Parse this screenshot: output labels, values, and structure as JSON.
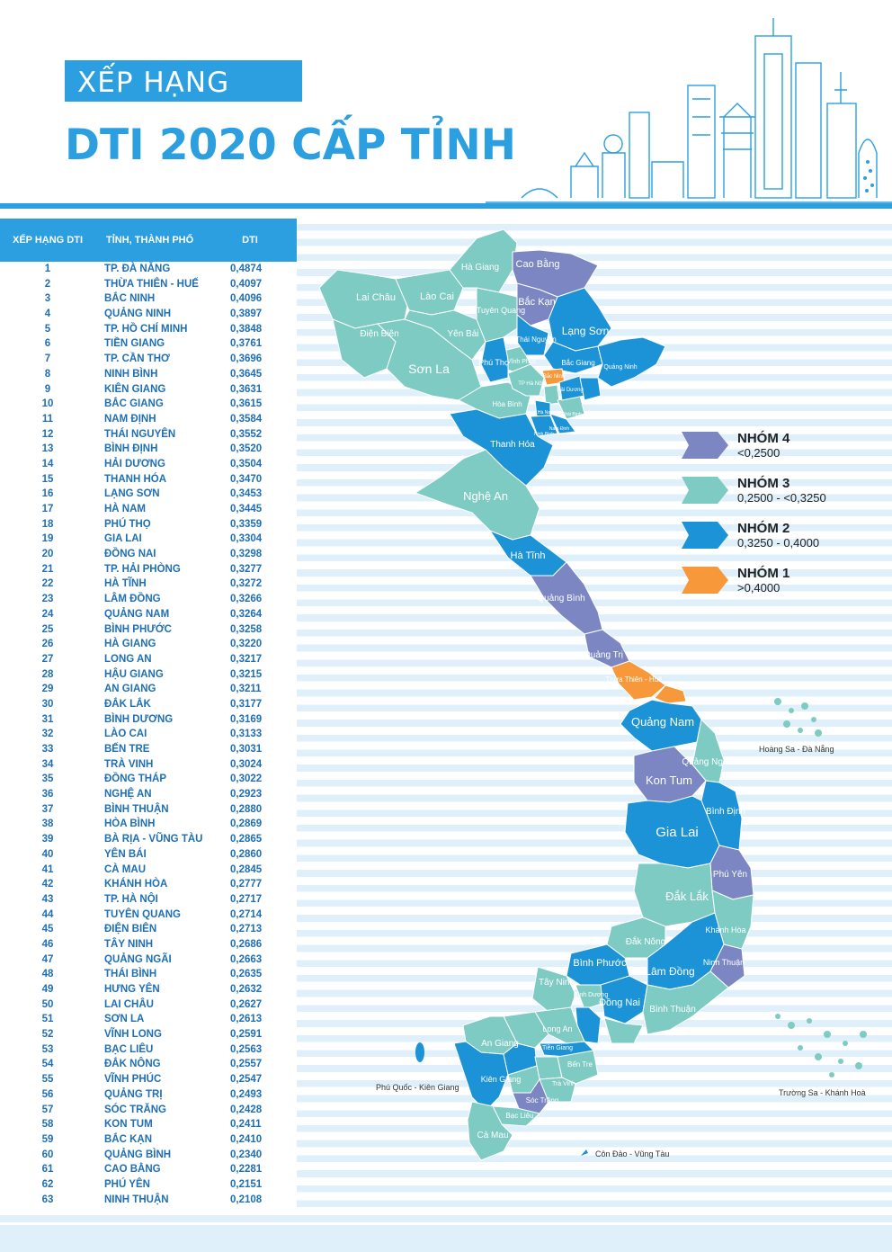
{
  "header": {
    "subtitle": "XẾP HẠNG",
    "title": "DTI 2020 CẤP TỈNH"
  },
  "table": {
    "headers": {
      "rank": "XẾP HẠNG DTI",
      "province": "TỈNH, THÀNH PHỐ",
      "dti": "DTI"
    },
    "rows": [
      {
        "rank": "1",
        "province": "TP. ĐÀ NẴNG",
        "dti": "0,4874"
      },
      {
        "rank": "2",
        "province": "THỪA THIÊN - HUẾ",
        "dti": "0,4097"
      },
      {
        "rank": "3",
        "province": "BẮC NINH",
        "dti": "0,4096"
      },
      {
        "rank": "4",
        "province": "QUẢNG NINH",
        "dti": "0,3897"
      },
      {
        "rank": "5",
        "province": "TP. HỒ CHÍ MINH",
        "dti": "0,3848"
      },
      {
        "rank": "6",
        "province": "TIỀN GIANG",
        "dti": "0,3761"
      },
      {
        "rank": "7",
        "province": "TP. CẦN THƠ",
        "dti": "0,3696"
      },
      {
        "rank": "8",
        "province": "NINH BÌNH",
        "dti": "0,3645"
      },
      {
        "rank": "9",
        "province": "KIÊN GIANG",
        "dti": "0,3631"
      },
      {
        "rank": "10",
        "province": "BẮC GIANG",
        "dti": "0,3615"
      },
      {
        "rank": "11",
        "province": "NAM ĐỊNH",
        "dti": "0,3584"
      },
      {
        "rank": "12",
        "province": "THÁI NGUYÊN",
        "dti": "0,3552"
      },
      {
        "rank": "13",
        "province": "BÌNH ĐỊNH",
        "dti": "0,3520"
      },
      {
        "rank": "14",
        "province": "HẢI DƯƠNG",
        "dti": "0,3504"
      },
      {
        "rank": "15",
        "province": "THANH HÓA",
        "dti": "0,3470"
      },
      {
        "rank": "16",
        "province": "LẠNG SƠN",
        "dti": "0,3453"
      },
      {
        "rank": "17",
        "province": "HÀ NAM",
        "dti": "0,3445"
      },
      {
        "rank": "18",
        "province": "PHÚ THỌ",
        "dti": "0,3359"
      },
      {
        "rank": "19",
        "province": "GIA LAI",
        "dti": "0,3304"
      },
      {
        "rank": "20",
        "province": "ĐỒNG NAI",
        "dti": "0,3298"
      },
      {
        "rank": "21",
        "province": "TP. HẢI PHÒNG",
        "dti": "0,3277"
      },
      {
        "rank": "22",
        "province": "HÀ TĨNH",
        "dti": "0,3272"
      },
      {
        "rank": "23",
        "province": "LÂM ĐỒNG",
        "dti": "0,3266"
      },
      {
        "rank": "24",
        "province": "QUẢNG NAM",
        "dti": "0,3264"
      },
      {
        "rank": "25",
        "province": "BÌNH PHƯỚC",
        "dti": "0,3258"
      },
      {
        "rank": "26",
        "province": "HÀ GIANG",
        "dti": "0,3220"
      },
      {
        "rank": "27",
        "province": "LONG AN",
        "dti": "0,3217"
      },
      {
        "rank": "28",
        "province": "HẬU GIANG",
        "dti": "0,3215"
      },
      {
        "rank": "29",
        "province": "AN GIANG",
        "dti": "0,3211"
      },
      {
        "rank": "30",
        "province": "ĐẮK LẮK",
        "dti": "0,3177"
      },
      {
        "rank": "31",
        "province": "BÌNH DƯƠNG",
        "dti": "0,3169"
      },
      {
        "rank": "32",
        "province": "LÀO CAI",
        "dti": "0,3133"
      },
      {
        "rank": "33",
        "province": "BẾN TRE",
        "dti": "0,3031"
      },
      {
        "rank": "34",
        "province": "TRÀ VINH",
        "dti": "0,3024"
      },
      {
        "rank": "35",
        "province": "ĐỒNG THÁP",
        "dti": "0,3022"
      },
      {
        "rank": "36",
        "province": "NGHỆ AN",
        "dti": "0,2923"
      },
      {
        "rank": "37",
        "province": "BÌNH THUẬN",
        "dti": "0,2880"
      },
      {
        "rank": "38",
        "province": "HÒA BÌNH",
        "dti": "0,2869"
      },
      {
        "rank": "39",
        "province": "BÀ RỊA - VŨNG TÀU",
        "dti": "0,2865"
      },
      {
        "rank": "40",
        "province": "YÊN BÁI",
        "dti": "0,2860"
      },
      {
        "rank": "41",
        "province": "CÀ MAU",
        "dti": "0,2845"
      },
      {
        "rank": "42",
        "province": "KHÁNH HÒA",
        "dti": "0,2777"
      },
      {
        "rank": "43",
        "province": "TP. HÀ NỘI",
        "dti": "0,2717"
      },
      {
        "rank": "44",
        "province": "TUYÊN QUANG",
        "dti": "0,2714"
      },
      {
        "rank": "45",
        "province": "ĐIỆN BIÊN",
        "dti": "0,2713"
      },
      {
        "rank": "46",
        "province": "TÂY NINH",
        "dti": "0,2686"
      },
      {
        "rank": "47",
        "province": "QUẢNG NGÃI",
        "dti": "0,2663"
      },
      {
        "rank": "48",
        "province": "THÁI BÌNH",
        "dti": "0,2635"
      },
      {
        "rank": "49",
        "province": "HƯNG YÊN",
        "dti": "0,2632"
      },
      {
        "rank": "50",
        "province": "LAI CHÂU",
        "dti": "0,2627"
      },
      {
        "rank": "51",
        "province": "SƠN LA",
        "dti": "0,2613"
      },
      {
        "rank": "52",
        "province": "VĨNH LONG",
        "dti": "0,2591"
      },
      {
        "rank": "53",
        "province": "BẠC LIÊU",
        "dti": "0,2563"
      },
      {
        "rank": "54",
        "province": "ĐẮK NÔNG",
        "dti": "0,2557"
      },
      {
        "rank": "55",
        "province": "VĨNH PHÚC",
        "dti": "0,2547"
      },
      {
        "rank": "56",
        "province": "QUẢNG TRỊ",
        "dti": "0,2493"
      },
      {
        "rank": "57",
        "province": "SÓC TRĂNG",
        "dti": "0,2428"
      },
      {
        "rank": "58",
        "province": "KON TUM",
        "dti": "0,2411"
      },
      {
        "rank": "59",
        "province": "BẮC KẠN",
        "dti": "0,2410"
      },
      {
        "rank": "60",
        "province": "QUẢNG BÌNH",
        "dti": "0,2340"
      },
      {
        "rank": "61",
        "province": "CAO BẰNG",
        "dti": "0,2281"
      },
      {
        "rank": "62",
        "province": "PHÚ YÊN",
        "dti": "0,2151"
      },
      {
        "rank": "63",
        "province": "NINH THUẬN",
        "dti": "0,2108"
      }
    ]
  },
  "legend": [
    {
      "name": "NHÓM 4",
      "range": "<0,2500",
      "color": "#7b86c2"
    },
    {
      "name": "NHÓM 3",
      "range": "0,2500 - <0,3250",
      "color": "#7ecbc4"
    },
    {
      "name": "NHÓM 2",
      "range": "0,3250 - 0,4000",
      "color": "#1c93d6"
    },
    {
      "name": "NHÓM 1",
      "range": ">0,4000",
      "color": "#f7993a"
    }
  ],
  "colors": {
    "accent": "#2b9fe0",
    "group1": "#f7993a",
    "group2": "#1c93d6",
    "group3": "#7ecbc4",
    "group4": "#7b86c2",
    "stripe": "#dff0fa",
    "table_text": "#1e6fb5"
  },
  "map_labels": {
    "cao_bang": "Cao Bằng",
    "ha_giang": "Hà Giang",
    "lai_chau": "Lai Châu",
    "lao_cai": "Lào Cai",
    "tuyen_quang": "Tuyên Quang",
    "bac_kan": "Bắc Kạn",
    "dien_bien": "Điện Biên",
    "yen_bai": "Yên Bái",
    "thai_nguyen": "Thái Nguyên",
    "lang_son": "Lạng Sơn",
    "son_la": "Sơn La",
    "phu_tho": "Phú Thọ",
    "vinh_phuc": "Vĩnh Phúc",
    "bac_giang": "Bắc Giang",
    "quang_ninh": "Quảng Ninh",
    "bac_ninh": "Bắc Ninh",
    "tp_ha_noi": "TP Hà Nội",
    "hai_duong": "Hải Dương",
    "hai_phong": "Hải Phòng",
    "hung_yen": "Hưng Yên",
    "hoa_binh": "Hòa Bình",
    "ha_nam": "Hà Nam",
    "thai_binh": "Thái Bình",
    "nam_dinh": "Nam Định",
    "ninh_binh": "Ninh Bình",
    "thanh_hoa": "Thanh Hóa",
    "nghe_an": "Nghệ An",
    "ha_tinh": "Hà Tĩnh",
    "quang_binh": "Quảng Bình",
    "quang_tri": "Quảng Trị",
    "hue": "Thừa Thiên - Huế",
    "da_nang": "Đà Nẵng",
    "quang_nam": "Quảng Nam",
    "quang_ngai": "Quảng Ngãi",
    "kon_tum": "Kon Tum",
    "binh_dinh": "Bình Định",
    "gia_lai": "Gia Lai",
    "phu_yen": "Phú Yên",
    "dak_lak": "Đắk Lắk",
    "khanh_hoa": "Khánh Hòa",
    "dak_nong": "Đắk Nông",
    "ninh_thuan": "Ninh Thuận",
    "binh_phuoc": "Bình Phước",
    "lam_dong": "Lâm Đồng",
    "tay_ninh": "Tây Ninh",
    "binh_duong": "Bình Dương",
    "dong_nai": "Đồng Nai",
    "binh_thuan": "Bình Thuận",
    "tp_hcm": "TP Hồ Chí Minh",
    "long_an": "Long An",
    "dong_thap": "Đồng Tháp",
    "ba_ria": "Bà Rịa Vũng Tàu",
    "an_giang": "An Giang",
    "tien_giang": "Tiền Giang",
    "can_tho": "Cần Thơ",
    "vinh_long": "Vĩnh Long",
    "ben_tre": "Bến Tre",
    "kien_giang": "Kiên Giang",
    "hau_giang": "Hậu Giang",
    "tra_vinh": "Trà Vinh",
    "soc_trang": "Sóc Trăng",
    "bac_lieu": "Bạc Liêu",
    "ca_mau": "Cà Mau"
  },
  "islands": {
    "hoang_sa": "Hoàng Sa - Đà Nẵng",
    "truong_sa": "Trường Sa - Khánh Hoà",
    "phu_quoc": "Phú Quốc - Kiên Giang",
    "con_dao": "Côn Đảo - Vũng Tàu"
  }
}
